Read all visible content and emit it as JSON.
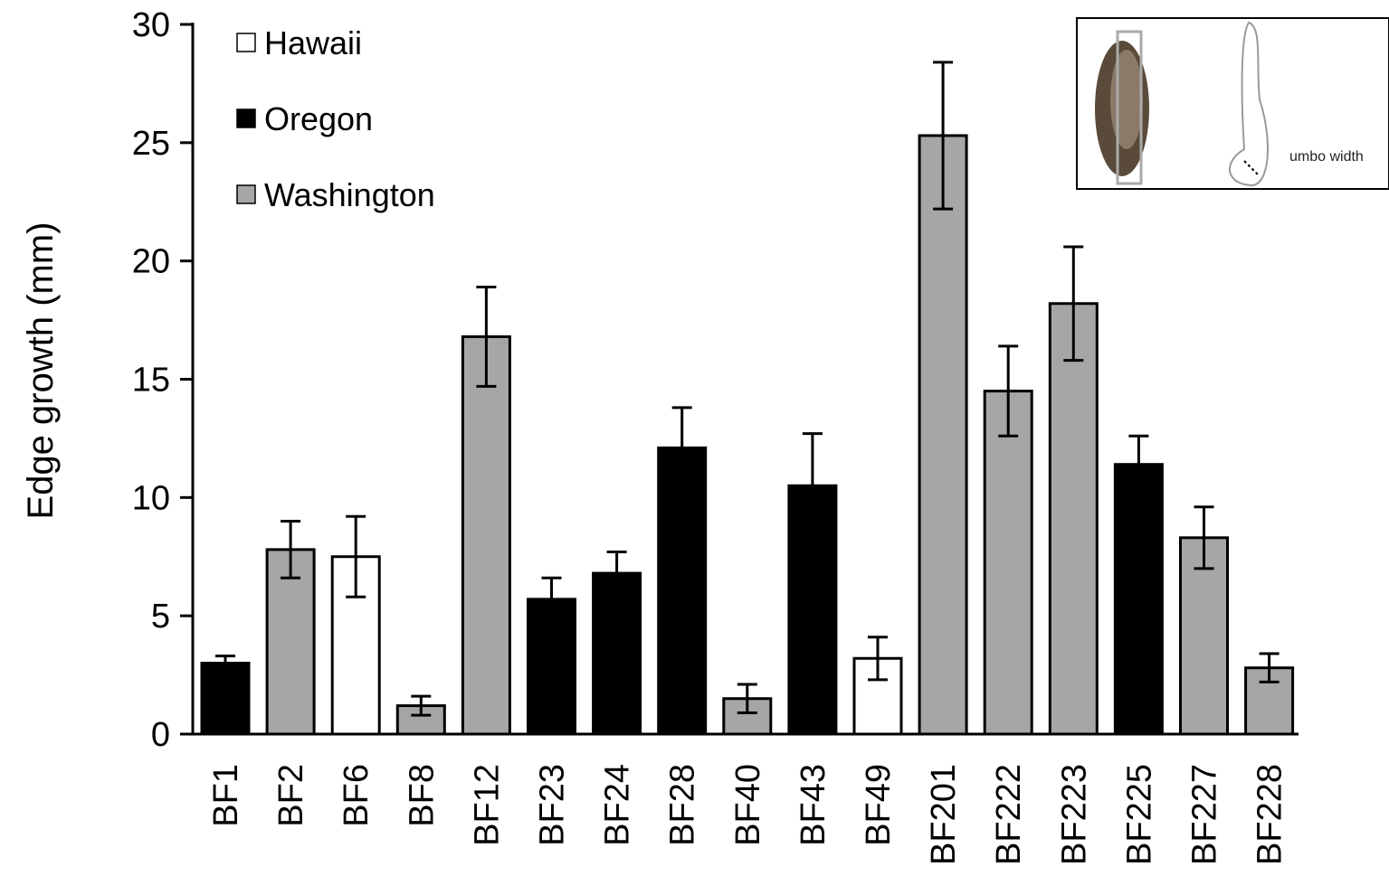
{
  "chart_data": {
    "type": "bar",
    "ylabel": "Edge growth (mm)",
    "categories": [
      "BF1",
      "BF2",
      "BF6",
      "BF8",
      "BF12",
      "BF23",
      "BF24",
      "BF28",
      "BF40",
      "BF43",
      "BF49",
      "BF201",
      "BF222",
      "BF223",
      "BF225",
      "BF227",
      "BF228"
    ],
    "series": [
      {
        "name": "Hawaii",
        "color": "#ffffff",
        "values": [
          null,
          null,
          7.5,
          null,
          null,
          null,
          null,
          null,
          null,
          null,
          3.2,
          null,
          null,
          null,
          null,
          null,
          null
        ],
        "errors": [
          null,
          null,
          1.7,
          null,
          null,
          null,
          null,
          null,
          null,
          null,
          0.9,
          null,
          null,
          null,
          null,
          null,
          null
        ]
      },
      {
        "name": "Oregon",
        "color": "#000000",
        "values": [
          3.0,
          null,
          null,
          null,
          null,
          5.7,
          6.8,
          12.1,
          null,
          10.5,
          null,
          null,
          null,
          null,
          11.4,
          null,
          null
        ],
        "errors": [
          0.3,
          null,
          null,
          null,
          null,
          0.9,
          0.9,
          1.7,
          null,
          2.2,
          null,
          null,
          null,
          null,
          1.2,
          null,
          null
        ]
      },
      {
        "name": "Washington",
        "color": "#a6a6a6",
        "values": [
          null,
          7.8,
          null,
          1.2,
          16.8,
          null,
          null,
          null,
          1.5,
          null,
          null,
          25.3,
          14.5,
          18.2,
          null,
          8.3,
          2.8
        ],
        "errors": [
          null,
          1.2,
          null,
          0.4,
          2.1,
          null,
          null,
          null,
          0.6,
          null,
          null,
          3.1,
          1.9,
          2.4,
          null,
          1.3,
          0.6
        ]
      }
    ],
    "ylim": [
      0,
      30
    ],
    "yticks": [
      0,
      5,
      10,
      15,
      20,
      25,
      30
    ],
    "grid": false,
    "legend": "top-left",
    "annotations": [
      "umbo width"
    ]
  }
}
